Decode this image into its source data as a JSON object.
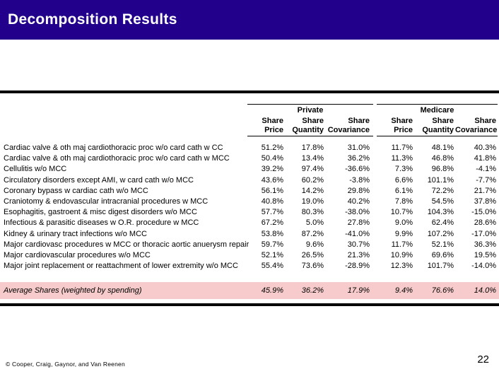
{
  "slide": {
    "title": "Decomposition Results",
    "footer_credit": "© Cooper, Craig, Gaynor, and Van Reenen",
    "page_number": "22",
    "colors": {
      "banner_background": "#22008C",
      "banner_text": "#FFFFFF",
      "summary_row_background": "#F7CBCB",
      "rule": "#000000"
    }
  },
  "table": {
    "groups": [
      {
        "label": "Private"
      },
      {
        "label": "Medicare"
      }
    ],
    "column_headers": [
      "Share Price",
      "Share\nQuantity",
      "Share\nCovariance",
      "Share Price",
      "Share\nQuantity",
      "Share\nCovariance"
    ],
    "rows": [
      {
        "label": "Cardiac valve & oth maj cardiothoracic proc w/o card cath w CC",
        "values": [
          "51.2%",
          "17.8%",
          "31.0%",
          "11.7%",
          "48.1%",
          "40.3%"
        ]
      },
      {
        "label": "Cardiac valve & oth maj cardiothoracic proc w/o card cath w MCC",
        "values": [
          "50.4%",
          "13.4%",
          "36.2%",
          "11.3%",
          "46.8%",
          "41.8%"
        ]
      },
      {
        "label": "Cellulitis w/o MCC",
        "values": [
          "39.2%",
          "97.4%",
          "-36.6%",
          "7.3%",
          "96.8%",
          "-4.1%"
        ]
      },
      {
        "label": "Circulatory disorders except AMI, w card cath w/o MCC",
        "values": [
          "43.6%",
          "60.2%",
          "-3.8%",
          "6.6%",
          "101.1%",
          "-7.7%"
        ]
      },
      {
        "label": "Coronary bypass w cardiac cath w/o MCC",
        "values": [
          "56.1%",
          "14.2%",
          "29.8%",
          "6.1%",
          "72.2%",
          "21.7%"
        ]
      },
      {
        "label": "Craniotomy & endovascular intracranial procedures w MCC",
        "values": [
          "40.8%",
          "19.0%",
          "40.2%",
          "7.8%",
          "54.5%",
          "37.8%"
        ]
      },
      {
        "label": "Esophagitis, gastroent & misc digest disorders w/o MCC",
        "values": [
          "57.7%",
          "80.3%",
          "-38.0%",
          "10.7%",
          "104.3%",
          "-15.0%"
        ]
      },
      {
        "label": "Infectious & parasitic diseases w O.R. procedure w MCC",
        "values": [
          "67.2%",
          "5.0%",
          "27.8%",
          "9.0%",
          "62.4%",
          "28.6%"
        ]
      },
      {
        "label": "Kidney & urinary tract infections w/o MCC",
        "values": [
          "53.8%",
          "87.2%",
          "-41.0%",
          "9.9%",
          "107.2%",
          "-17.0%"
        ]
      },
      {
        "label": "Major cardiovasc procedures w MCC or thoracic aortic anuerysm repair",
        "values": [
          "59.7%",
          "9.6%",
          "30.7%",
          "11.7%",
          "52.1%",
          "36.3%"
        ]
      },
      {
        "label": "Major cardiovascular procedures w/o MCC",
        "values": [
          "52.1%",
          "26.5%",
          "21.3%",
          "10.9%",
          "69.6%",
          "19.5%"
        ]
      },
      {
        "label": "Major joint replacement or reattachment of lower extremity w/o MCC",
        "values": [
          "55.4%",
          "73.6%",
          "-28.9%",
          "12.3%",
          "101.7%",
          "-14.0%"
        ]
      }
    ],
    "summary": {
      "label": "Average Shares (weighted by spending)",
      "values": [
        "45.9%",
        "36.2%",
        "17.9%",
        "9.4%",
        "76.6%",
        "14.0%"
      ]
    }
  }
}
